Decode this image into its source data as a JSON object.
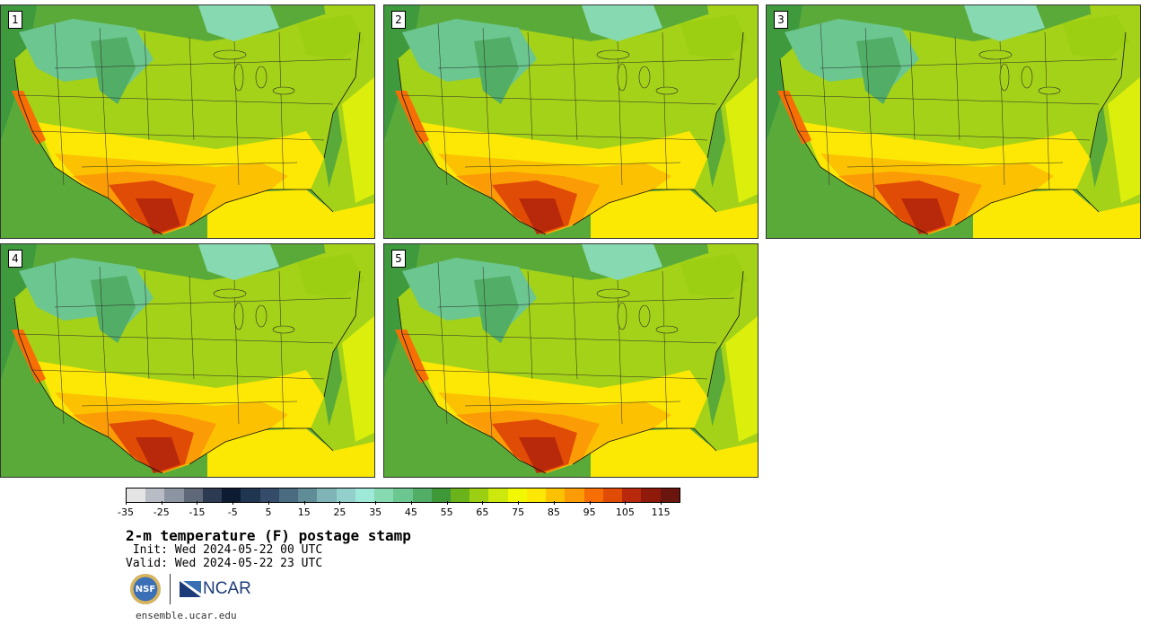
{
  "panels": [
    {
      "label": "1"
    },
    {
      "label": "2"
    },
    {
      "label": "3"
    },
    {
      "label": "4"
    },
    {
      "label": "5"
    }
  ],
  "colorbar": {
    "colors": [
      "#e4e4e4",
      "#b8bcc4",
      "#8e95a2",
      "#5f6878",
      "#2c3a52",
      "#0e1c33",
      "#1f3550",
      "#344c69",
      "#4a6b80",
      "#5f8c96",
      "#7fb3b5",
      "#93d0cb",
      "#9fe9d8",
      "#86d9b0",
      "#6cc68f",
      "#52ad66",
      "#3e9837",
      "#6bb31b",
      "#9ccf12",
      "#cde80c",
      "#f2f802",
      "#fde705",
      "#fcc100",
      "#fb9c06",
      "#f76e05",
      "#e04b06",
      "#b8280a",
      "#8f1a0b",
      "#6a150d"
    ],
    "ticks": [
      "-35",
      "-25",
      "-15",
      "-5",
      "5",
      "15",
      "25",
      "35",
      "45",
      "55",
      "65",
      "75",
      "85",
      "95",
      "105",
      "115"
    ]
  },
  "title": "2-m temperature (F) postage stamp",
  "init": " Init: Wed 2024-05-22 00 UTC",
  "valid": "Valid: Wed 2024-05-22 23 UTC",
  "logos": {
    "nsf": "NSF",
    "ncar": "NCAR"
  },
  "site": "ensemble.ucar.edu"
}
